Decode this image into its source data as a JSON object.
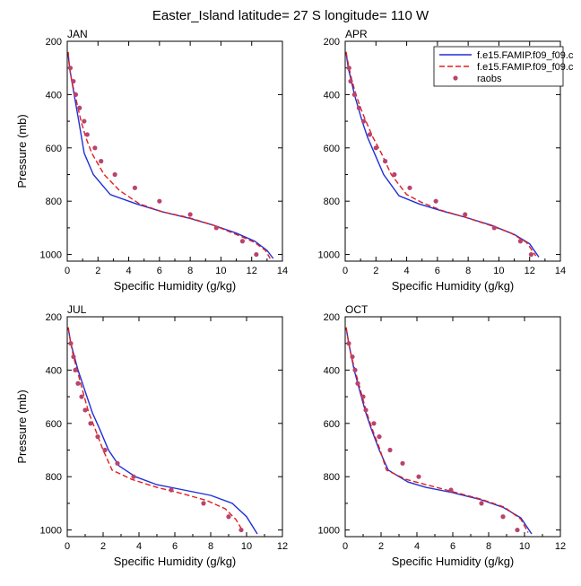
{
  "figure": {
    "title": "Easter_Island  latitude= 27 S longitude= 110 W"
  },
  "legend": {
    "entries": [
      {
        "label": "f.e15.FAMIP.f09_f09.c",
        "style": "solid",
        "color": "#1f2fd8"
      },
      {
        "label": "f.e15.FAMIP.f09_f09.c",
        "style": "dashed",
        "color": "#e0201b"
      },
      {
        "label": "raobs",
        "style": "marker",
        "color": "#b8446e"
      }
    ]
  },
  "chart_data": [
    {
      "type": "line",
      "panel_label": "JAN",
      "xlabel": "Specific Humidity (g/kg)",
      "ylabel": "Pressure (mb)",
      "xlim": [
        0,
        14
      ],
      "ylim": [
        1025,
        200
      ],
      "x_ticks": [
        0,
        2,
        4,
        6,
        8,
        10,
        12,
        14
      ],
      "y_ticks": [
        200,
        400,
        600,
        800,
        1000
      ],
      "y_reversed": true,
      "series": [
        {
          "style": "solid",
          "color": "#1f2fd8",
          "points": [
            [
              0.05,
              240
            ],
            [
              0.15,
              300
            ],
            [
              0.3,
              350
            ],
            [
              0.45,
              400
            ],
            [
              0.6,
              450
            ],
            [
              0.75,
              500
            ],
            [
              0.9,
              550
            ],
            [
              1.1,
              620
            ],
            [
              1.7,
              700
            ],
            [
              2.8,
              775
            ],
            [
              4.5,
              810
            ],
            [
              6.2,
              840
            ],
            [
              8.0,
              865
            ],
            [
              9.5,
              890
            ],
            [
              11.0,
              920
            ],
            [
              12.2,
              950
            ],
            [
              13.0,
              985
            ],
            [
              13.4,
              1015
            ]
          ]
        },
        {
          "style": "dashed",
          "color": "#e0201b",
          "points": [
            [
              0.05,
              240
            ],
            [
              0.15,
              300
            ],
            [
              0.3,
              350
            ],
            [
              0.5,
              400
            ],
            [
              0.7,
              450
            ],
            [
              0.9,
              500
            ],
            [
              1.2,
              560
            ],
            [
              1.6,
              620
            ],
            [
              2.4,
              700
            ],
            [
              3.4,
              760
            ],
            [
              4.7,
              810
            ],
            [
              6.2,
              840
            ],
            [
              7.8,
              860
            ],
            [
              9.5,
              890
            ],
            [
              11.0,
              925
            ],
            [
              12.2,
              955
            ],
            [
              12.9,
              985
            ],
            [
              13.2,
              1015
            ]
          ]
        },
        {
          "style": "marker",
          "color": "#b8446e",
          "points": [
            [
              0.2,
              300
            ],
            [
              0.4,
              350
            ],
            [
              0.55,
              400
            ],
            [
              0.8,
              450
            ],
            [
              1.1,
              500
            ],
            [
              1.3,
              550
            ],
            [
              1.8,
              600
            ],
            [
              2.2,
              650
            ],
            [
              3.1,
              700
            ],
            [
              4.4,
              750
            ],
            [
              6.0,
              800
            ],
            [
              8.0,
              850
            ],
            [
              9.7,
              900
            ],
            [
              11.4,
              950
            ],
            [
              12.3,
              1000
            ]
          ]
        }
      ]
    },
    {
      "type": "line",
      "panel_label": "APR",
      "xlabel": "Specific Humidity (g/kg)",
      "ylabel": "",
      "xlim": [
        0,
        14
      ],
      "ylim": [
        1025,
        200
      ],
      "x_ticks": [
        0,
        2,
        4,
        6,
        8,
        10,
        12,
        14
      ],
      "y_ticks": [
        200,
        400,
        600,
        800,
        1000
      ],
      "y_reversed": true,
      "series": [
        {
          "style": "solid",
          "color": "#1f2fd8",
          "points": [
            [
              0.05,
              240
            ],
            [
              0.2,
              300
            ],
            [
              0.4,
              350
            ],
            [
              0.6,
              400
            ],
            [
              0.85,
              450
            ],
            [
              1.1,
              500
            ],
            [
              1.45,
              560
            ],
            [
              1.9,
              620
            ],
            [
              2.5,
              700
            ],
            [
              3.5,
              780
            ],
            [
              4.8,
              810
            ],
            [
              6.2,
              835
            ],
            [
              7.8,
              860
            ],
            [
              9.5,
              890
            ],
            [
              11.0,
              925
            ],
            [
              12.0,
              960
            ],
            [
              12.6,
              1010
            ]
          ]
        },
        {
          "style": "dashed",
          "color": "#e0201b",
          "points": [
            [
              0.05,
              240
            ],
            [
              0.25,
              300
            ],
            [
              0.45,
              350
            ],
            [
              0.7,
              400
            ],
            [
              1.0,
              450
            ],
            [
              1.35,
              500
            ],
            [
              1.8,
              560
            ],
            [
              2.35,
              620
            ],
            [
              3.0,
              700
            ],
            [
              4.0,
              775
            ],
            [
              5.0,
              805
            ],
            [
              6.3,
              835
            ],
            [
              7.8,
              860
            ],
            [
              9.4,
              890
            ],
            [
              10.8,
              920
            ],
            [
              11.8,
              955
            ],
            [
              12.4,
              1005
            ]
          ]
        },
        {
          "style": "marker",
          "color": "#b8446e",
          "points": [
            [
              0.25,
              300
            ],
            [
              0.35,
              350
            ],
            [
              0.6,
              400
            ],
            [
              0.9,
              450
            ],
            [
              1.2,
              500
            ],
            [
              1.6,
              550
            ],
            [
              2.0,
              600
            ],
            [
              2.6,
              650
            ],
            [
              3.2,
              700
            ],
            [
              4.2,
              750
            ],
            [
              5.9,
              800
            ],
            [
              7.8,
              850
            ],
            [
              9.7,
              900
            ],
            [
              11.4,
              950
            ],
            [
              12.1,
              1000
            ]
          ]
        }
      ]
    },
    {
      "type": "line",
      "panel_label": "JUL",
      "xlabel": "Specific Humidity (g/kg)",
      "ylabel": "Pressure (mb)",
      "xlim": [
        0,
        12
      ],
      "ylim": [
        1025,
        200
      ],
      "x_ticks": [
        0,
        2,
        4,
        6,
        8,
        10,
        12
      ],
      "y_ticks": [
        200,
        400,
        600,
        800,
        1000
      ],
      "y_reversed": true,
      "series": [
        {
          "style": "solid",
          "color": "#1f2fd8",
          "points": [
            [
              0.05,
              240
            ],
            [
              0.2,
              300
            ],
            [
              0.4,
              350
            ],
            [
              0.6,
              400
            ],
            [
              0.85,
              450
            ],
            [
              1.1,
              500
            ],
            [
              1.4,
              560
            ],
            [
              1.8,
              620
            ],
            [
              2.3,
              700
            ],
            [
              2.9,
              760
            ],
            [
              3.8,
              800
            ],
            [
              5.0,
              830
            ],
            [
              6.5,
              850
            ],
            [
              8.0,
              870
            ],
            [
              9.2,
              900
            ],
            [
              10.0,
              950
            ],
            [
              10.6,
              1015
            ]
          ]
        },
        {
          "style": "dashed",
          "color": "#e0201b",
          "points": [
            [
              0.05,
              240
            ],
            [
              0.2,
              300
            ],
            [
              0.35,
              350
            ],
            [
              0.55,
              400
            ],
            [
              0.75,
              450
            ],
            [
              0.95,
              500
            ],
            [
              1.2,
              560
            ],
            [
              1.55,
              620
            ],
            [
              2.0,
              700
            ],
            [
              2.5,
              775
            ],
            [
              3.6,
              810
            ],
            [
              5.0,
              840
            ],
            [
              6.5,
              865
            ],
            [
              7.8,
              890
            ],
            [
              8.8,
              920
            ],
            [
              9.4,
              960
            ],
            [
              9.8,
              1005
            ]
          ]
        },
        {
          "style": "marker",
          "color": "#b8446e",
          "points": [
            [
              0.2,
              300
            ],
            [
              0.35,
              350
            ],
            [
              0.45,
              400
            ],
            [
              0.6,
              450
            ],
            [
              0.8,
              500
            ],
            [
              1.0,
              550
            ],
            [
              1.3,
              600
            ],
            [
              1.7,
              650
            ],
            [
              2.1,
              700
            ],
            [
              2.8,
              750
            ],
            [
              3.7,
              800
            ],
            [
              5.8,
              850
            ],
            [
              7.6,
              900
            ],
            [
              9.0,
              950
            ],
            [
              9.7,
              1000
            ]
          ]
        }
      ]
    },
    {
      "type": "line",
      "panel_label": "OCT",
      "xlabel": "Specific Humidity (g/kg)",
      "ylabel": "",
      "xlim": [
        0,
        12
      ],
      "ylim": [
        1025,
        200
      ],
      "x_ticks": [
        0,
        2,
        4,
        6,
        8,
        10,
        12
      ],
      "y_ticks": [
        200,
        400,
        600,
        800,
        1000
      ],
      "y_reversed": true,
      "series": [
        {
          "style": "solid",
          "color": "#1f2fd8",
          "points": [
            [
              0.05,
              240
            ],
            [
              0.2,
              300
            ],
            [
              0.35,
              350
            ],
            [
              0.5,
              400
            ],
            [
              0.7,
              450
            ],
            [
              0.9,
              500
            ],
            [
              1.15,
              560
            ],
            [
              1.45,
              620
            ],
            [
              1.9,
              700
            ],
            [
              2.4,
              775
            ],
            [
              3.5,
              820
            ],
            [
              4.5,
              840
            ],
            [
              6.0,
              860
            ],
            [
              7.5,
              885
            ],
            [
              8.8,
              915
            ],
            [
              9.8,
              955
            ],
            [
              10.4,
              1015
            ]
          ]
        },
        {
          "style": "dashed",
          "color": "#e0201b",
          "points": [
            [
              0.05,
              240
            ],
            [
              0.2,
              300
            ],
            [
              0.35,
              350
            ],
            [
              0.55,
              400
            ],
            [
              0.75,
              450
            ],
            [
              0.95,
              500
            ],
            [
              1.2,
              560
            ],
            [
              1.5,
              620
            ],
            [
              1.95,
              700
            ],
            [
              2.3,
              775
            ],
            [
              3.4,
              810
            ],
            [
              4.8,
              835
            ],
            [
              6.2,
              860
            ],
            [
              7.6,
              885
            ],
            [
              8.9,
              915
            ],
            [
              9.8,
              960
            ],
            [
              10.2,
              1010
            ]
          ]
        },
        {
          "style": "marker",
          "color": "#b8446e",
          "points": [
            [
              0.2,
              300
            ],
            [
              0.4,
              350
            ],
            [
              0.55,
              400
            ],
            [
              0.7,
              450
            ],
            [
              1.0,
              500
            ],
            [
              1.15,
              550
            ],
            [
              1.6,
              600
            ],
            [
              1.9,
              650
            ],
            [
              2.5,
              700
            ],
            [
              3.2,
              750
            ],
            [
              4.1,
              800
            ],
            [
              5.9,
              850
            ],
            [
              7.6,
              900
            ],
            [
              8.8,
              950
            ],
            [
              9.6,
              1000
            ]
          ]
        }
      ]
    }
  ]
}
